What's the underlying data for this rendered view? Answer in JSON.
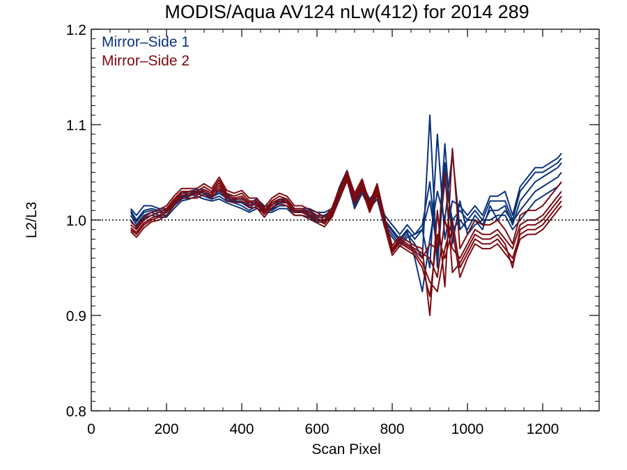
{
  "chart_data": {
    "type": "line",
    "title": "MODIS/Aqua AV124 nLw(412) for 2014 289",
    "xlabel": "Scan Pixel",
    "ylabel": "L2/L3",
    "xlim": [
      0,
      1350
    ],
    "ylim": [
      0.8,
      1.2
    ],
    "xticks": [
      0,
      200,
      400,
      600,
      800,
      1000,
      1200
    ],
    "yticks": [
      0.8,
      0.9,
      1.0,
      1.1,
      1.2
    ],
    "x_tick_labels": [
      "0",
      "200",
      "400",
      "600",
      "800",
      "1000",
      "1200"
    ],
    "y_tick_labels": [
      "0.8",
      "0.9",
      "1.0",
      "1.1",
      "1.2"
    ],
    "reference_line": 1.0,
    "reference_line_style": "dotted",
    "legend_position": "top-left",
    "legend": [
      {
        "label": "Mirror–Side 1",
        "color": "#0b3378"
      },
      {
        "label": "Mirror–Side 2",
        "color": "#7a0a10"
      }
    ],
    "x": [
      105,
      120,
      140,
      160,
      180,
      200,
      220,
      240,
      260,
      280,
      300,
      320,
      340,
      360,
      380,
      400,
      420,
      440,
      460,
      480,
      500,
      520,
      540,
      560,
      580,
      600,
      620,
      640,
      660,
      680,
      700,
      720,
      740,
      760,
      780,
      800,
      820,
      840,
      860,
      880,
      900,
      920,
      940,
      960,
      980,
      1000,
      1020,
      1040,
      1060,
      1080,
      1100,
      1120,
      1140,
      1160,
      1180,
      1200,
      1220,
      1240,
      1250
    ],
    "series": [
      {
        "name": "Mirror–Side 1",
        "color": "#0b3378",
        "values": [
          [
            1.01,
            1.0,
            1.01,
            1.012,
            1.01,
            1.01,
            1.018,
            1.025,
            1.028,
            1.03,
            1.03,
            1.025,
            1.03,
            1.025,
            1.02,
            1.02,
            1.015,
            1.02,
            1.012,
            1.012,
            1.02,
            1.02,
            1.01,
            1.01,
            1.01,
            1.005,
            1.005,
            1.01,
            1.03,
            1.05,
            1.02,
            1.035,
            1.02,
            1.03,
            1.0,
            0.99,
            0.98,
            0.99,
            0.98,
            0.99,
            1.02,
            0.97,
            1.04,
            1.0,
            1.01,
            1.0,
            1.01,
            1.0,
            1.02,
            1.02,
            1.02,
            1.0,
            1.03,
            1.04,
            1.05,
            1.05,
            1.055,
            1.06,
            1.065
          ],
          [
            1.005,
            0.995,
            1.005,
            1.008,
            1.005,
            1.005,
            1.015,
            1.022,
            1.025,
            1.028,
            1.025,
            1.022,
            1.025,
            1.02,
            1.018,
            1.015,
            1.01,
            1.015,
            1.01,
            1.01,
            1.015,
            1.015,
            1.008,
            1.008,
            1.005,
            1.0,
            1.0,
            1.005,
            1.025,
            1.045,
            1.015,
            1.03,
            1.015,
            1.025,
            0.995,
            0.985,
            0.975,
            0.985,
            0.975,
            0.96,
            1.11,
            0.95,
            1.06,
            0.99,
            1.0,
            0.99,
            1.005,
            0.995,
            1.01,
            1.01,
            1.015,
            0.995,
            1.02,
            1.03,
            1.04,
            1.045,
            1.05,
            1.055,
            1.06
          ],
          [
            1.012,
            1.005,
            1.015,
            1.015,
            1.012,
            1.012,
            1.02,
            1.028,
            1.03,
            1.032,
            1.032,
            1.028,
            1.032,
            1.028,
            1.022,
            1.022,
            1.018,
            1.022,
            1.015,
            1.015,
            1.022,
            1.022,
            1.012,
            1.012,
            1.012,
            1.008,
            1.008,
            1.012,
            1.035,
            1.052,
            1.025,
            1.038,
            1.022,
            1.032,
            1.005,
            0.995,
            0.985,
            0.995,
            0.985,
            0.99,
            0.95,
            1.09,
            0.98,
            1.02,
            1.015,
            1.005,
            1.015,
            1.005,
            1.025,
            1.025,
            1.03,
            1.005,
            1.035,
            1.045,
            1.055,
            1.055,
            1.06,
            1.065,
            1.07
          ],
          [
            1.008,
            0.998,
            1.008,
            1.01,
            1.008,
            1.008,
            1.016,
            1.024,
            1.026,
            1.029,
            1.028,
            1.024,
            1.028,
            1.023,
            1.019,
            1.018,
            1.013,
            1.018,
            1.011,
            1.011,
            1.018,
            1.018,
            1.009,
            1.009,
            1.008,
            1.003,
            1.003,
            1.008,
            1.028,
            1.048,
            1.018,
            1.033,
            1.018,
            1.028,
            0.998,
            0.988,
            0.978,
            0.988,
            0.96,
            0.925,
            0.98,
            1.03,
            1.0,
            1.07,
            0.99,
            1.0,
            1.0,
            0.99,
            1.015,
            1.0,
            1.01,
            0.998,
            1.01,
            1.02,
            1.03,
            1.035,
            1.04,
            1.045,
            1.05
          ],
          [
            1.0,
            0.992,
            1.002,
            1.005,
            1.003,
            1.003,
            1.012,
            1.02,
            1.022,
            1.025,
            1.022,
            1.02,
            1.022,
            1.018,
            1.015,
            1.012,
            1.008,
            1.012,
            1.008,
            1.008,
            1.012,
            1.012,
            1.005,
            1.005,
            1.003,
            0.998,
            0.998,
            1.003,
            1.022,
            1.042,
            1.012,
            1.028,
            1.012,
            1.022,
            0.992,
            0.982,
            0.972,
            0.982,
            0.985,
            0.995,
            1.04,
            0.96,
            1.08,
            0.975,
            1.02,
            0.985,
            0.995,
            1.0,
            1.0,
            1.005,
            1.005,
            0.99,
            1.0,
            1.01,
            1.02,
            1.025,
            1.03,
            1.035,
            1.04
          ]
        ]
      },
      {
        "name": "Mirror–Side 2",
        "color": "#7a0a10",
        "values": [
          [
            0.995,
            0.99,
            1.0,
            1.005,
            1.008,
            1.012,
            1.022,
            1.03,
            1.03,
            1.03,
            1.035,
            1.03,
            1.042,
            1.028,
            1.025,
            1.028,
            1.02,
            1.02,
            1.01,
            1.02,
            1.025,
            1.022,
            1.012,
            1.012,
            1.008,
            1.005,
            1.0,
            1.01,
            1.03,
            1.048,
            1.025,
            1.04,
            1.015,
            1.035,
            1.0,
            0.97,
            0.98,
            0.975,
            0.97,
            0.965,
            0.96,
            0.94,
            1.0,
            0.97,
            0.96,
            0.975,
            0.99,
            0.985,
            0.985,
            0.99,
            0.98,
            0.97,
            0.995,
            1.0,
            1.0,
            1.005,
            1.015,
            1.025,
            1.03
          ],
          [
            0.99,
            0.985,
            0.995,
            1.0,
            1.003,
            1.008,
            1.018,
            1.026,
            1.026,
            1.026,
            1.03,
            1.026,
            1.036,
            1.024,
            1.021,
            1.023,
            1.016,
            1.016,
            1.006,
            1.016,
            1.02,
            1.018,
            1.008,
            1.008,
            1.004,
            1.0,
            0.996,
            1.006,
            1.026,
            1.044,
            1.02,
            1.035,
            1.011,
            1.03,
            0.996,
            0.966,
            0.976,
            0.971,
            0.966,
            0.955,
            0.935,
            0.925,
            0.97,
            1.0,
            0.95,
            0.965,
            0.98,
            0.975,
            0.975,
            0.98,
            0.97,
            0.96,
            0.985,
            0.99,
            0.99,
            0.995,
            1.005,
            1.015,
            1.02
          ],
          [
            0.998,
            0.993,
            1.003,
            1.008,
            1.011,
            1.015,
            1.025,
            1.033,
            1.033,
            1.033,
            1.038,
            1.033,
            1.045,
            1.031,
            1.028,
            1.031,
            1.023,
            1.023,
            1.013,
            1.023,
            1.028,
            1.025,
            1.015,
            1.015,
            1.011,
            1.008,
            1.003,
            1.013,
            1.033,
            1.051,
            1.028,
            1.043,
            1.018,
            1.038,
            1.003,
            0.973,
            0.983,
            0.978,
            0.973,
            0.97,
            0.9,
            1.01,
            0.93,
            1.075,
            0.97,
            0.985,
            1.0,
            0.995,
            0.995,
            1.0,
            0.99,
            0.975,
            1.005,
            1.01,
            1.01,
            1.015,
            1.025,
            1.035,
            1.04
          ],
          [
            0.992,
            0.987,
            0.997,
            1.002,
            1.005,
            1.01,
            1.02,
            1.028,
            1.028,
            1.028,
            1.032,
            1.028,
            1.039,
            1.026,
            1.023,
            1.025,
            1.018,
            1.018,
            1.008,
            1.018,
            1.022,
            1.02,
            1.01,
            1.01,
            1.006,
            1.002,
            0.998,
            1.008,
            1.028,
            1.046,
            1.022,
            1.037,
            1.013,
            1.032,
            0.998,
            0.968,
            0.978,
            0.973,
            0.968,
            0.96,
            0.975,
            0.97,
            1.05,
            0.945,
            0.955,
            0.97,
            0.985,
            0.98,
            0.98,
            0.985,
            0.975,
            0.95,
            0.99,
            0.995,
            0.995,
            1.0,
            1.01,
            1.02,
            1.025
          ],
          [
            0.988,
            0.982,
            0.992,
            0.998,
            1.0,
            1.005,
            1.015,
            1.023,
            1.023,
            1.023,
            1.027,
            1.023,
            1.033,
            1.021,
            1.018,
            1.02,
            1.013,
            1.013,
            1.003,
            1.013,
            1.017,
            1.015,
            1.005,
            1.005,
            1.001,
            0.997,
            0.993,
            1.003,
            1.023,
            1.041,
            1.017,
            1.032,
            1.008,
            1.027,
            0.993,
            0.963,
            0.973,
            0.968,
            0.963,
            0.95,
            0.92,
            0.985,
            0.96,
            0.99,
            0.94,
            0.96,
            0.975,
            0.97,
            0.97,
            0.975,
            0.965,
            0.955,
            0.98,
            0.985,
            0.985,
            0.99,
            1.0,
            1.01,
            1.015
          ]
        ]
      }
    ]
  }
}
